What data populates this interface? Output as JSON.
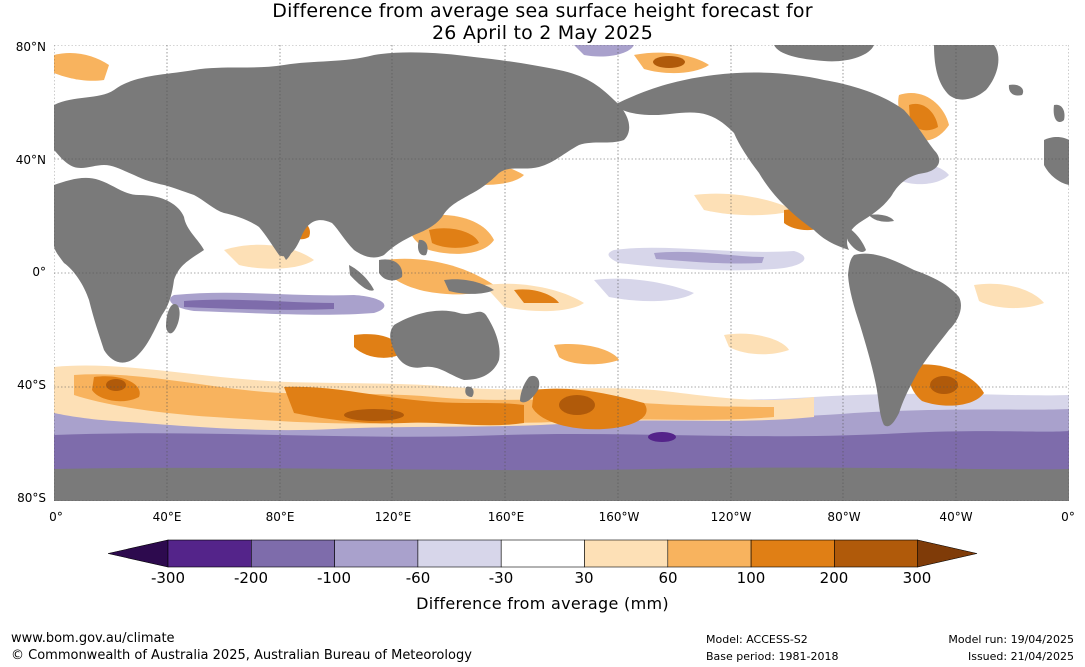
{
  "title": {
    "line1": "Difference from average sea surface height forecast for",
    "line2": "26 April to 2 May 2025"
  },
  "axes": {
    "lat_labels": [
      "80°N",
      "40°N",
      "0°",
      "40°S",
      "80°S"
    ],
    "lon_labels": [
      "0°",
      "40°E",
      "80°E",
      "120°E",
      "160°E",
      "160°W",
      "120°W",
      "80°W",
      "40°W",
      "0°"
    ]
  },
  "colorbar": {
    "ticks": [
      "-300",
      "-200",
      "-100",
      "-60",
      "-30",
      "30",
      "60",
      "100",
      "200",
      "300"
    ],
    "label": "Difference from average (mm)",
    "colors": {
      "lt300": "#2d0a4e",
      "m300_m200": "#54248a",
      "m200_m100": "#7e6cab",
      "m100_m60": "#a9a1cc",
      "m60_m30": "#d7d6ea",
      "m30_30": "#ffffff",
      "30_60": "#fde0b6",
      "60_100": "#f8b35e",
      "100_200": "#e07f15",
      "200_300": "#b05a0a",
      "gt300": "#7f3b08"
    }
  },
  "land_color": "#7a7a7a",
  "footer": {
    "url": "www.bom.gov.au/climate",
    "copyright": "© Commonwealth of Australia 2025, Australian Bureau of Meteorology",
    "model": "Model: ACCESS-S2",
    "base_period": "Base period: 1981-2018",
    "model_run": "Model run: 19/04/2025",
    "issued": "Issued: 21/04/2025"
  }
}
